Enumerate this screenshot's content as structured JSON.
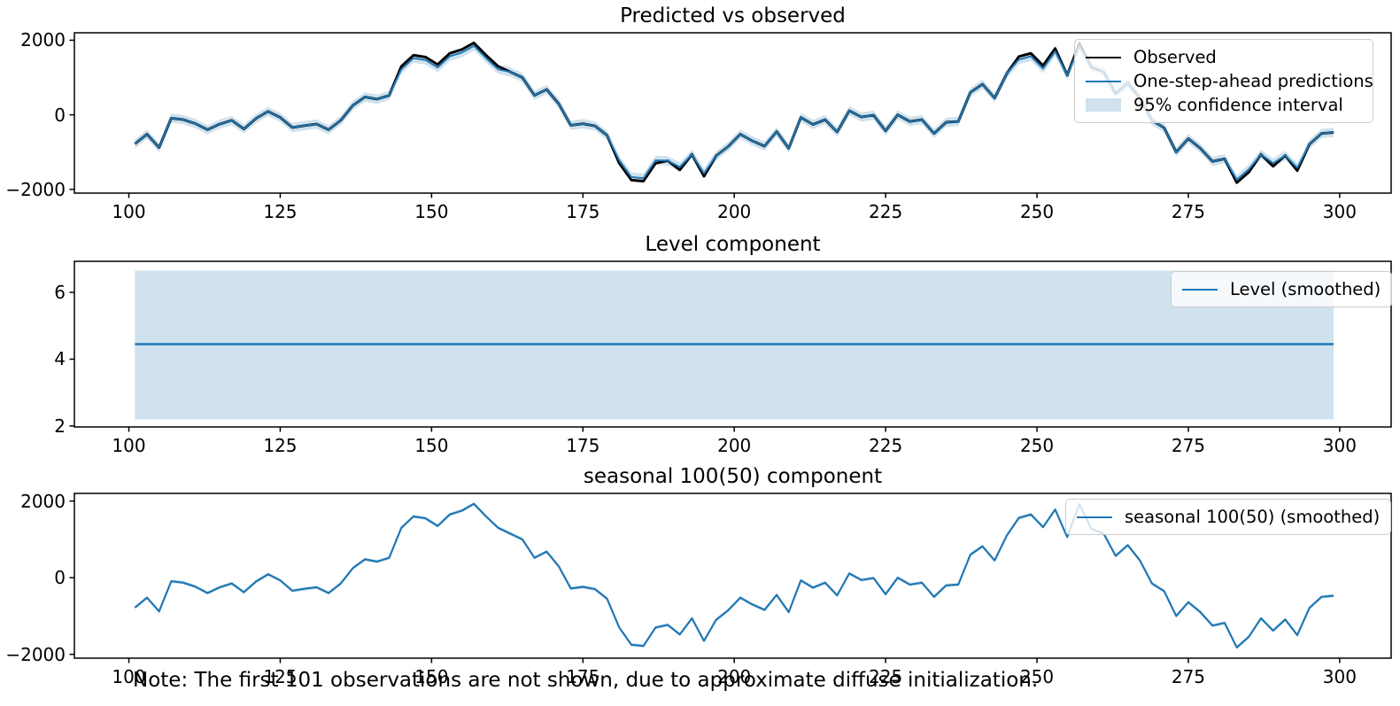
{
  "figure": {
    "note": "Note: The first 101 observations are not shown, due to approximate diffuse initialization.",
    "background": "#ffffff"
  },
  "colors": {
    "observed_line": "#000000",
    "prediction_line": "#1f77b4",
    "level_line": "#1f77b4",
    "seasonal_line": "#1f77b4",
    "confidence_band": "#cfe2ee",
    "axis": "#000000",
    "legend_border": "#cccccc",
    "text": "#000000"
  },
  "chart_data": [
    {
      "type": "line",
      "title": "Predicted vs observed",
      "legend_position": "upper right",
      "legend": [
        "Observed",
        "One-step-ahead predictions",
        "95% confidence interval"
      ],
      "xlim": [
        91,
        308.5
      ],
      "ylim": [
        -2100,
        2200
      ],
      "xticks": [
        100,
        125,
        150,
        175,
        200,
        225,
        250,
        275,
        300
      ],
      "yticks": [
        -2000,
        0,
        2000
      ],
      "grid": false,
      "ci_halfwidth": 125,
      "x": [
        101,
        103,
        105,
        107,
        109,
        111,
        113,
        115,
        117,
        119,
        121,
        123,
        125,
        127,
        129,
        131,
        133,
        135,
        137,
        139,
        141,
        143,
        145,
        147,
        149,
        151,
        153,
        155,
        157,
        159,
        161,
        163,
        165,
        167,
        169,
        171,
        173,
        175,
        177,
        179,
        181,
        183,
        185,
        187,
        189,
        191,
        193,
        195,
        197,
        199,
        201,
        203,
        205,
        207,
        209,
        211,
        213,
        215,
        217,
        219,
        221,
        223,
        225,
        227,
        229,
        231,
        233,
        235,
        237,
        239,
        241,
        243,
        245,
        247,
        249,
        251,
        253,
        255,
        257,
        259,
        261,
        263,
        265,
        267,
        269,
        271,
        273,
        275,
        277,
        279,
        281,
        283,
        285,
        287,
        289,
        291,
        293,
        295,
        297,
        299
      ],
      "series": [
        {
          "name": "Observed",
          "values": [
            -780,
            -520,
            -880,
            -90,
            -130,
            -235,
            -400,
            -250,
            -150,
            -380,
            -100,
            90,
            -70,
            -340,
            -290,
            -250,
            -400,
            -150,
            250,
            480,
            420,
            520,
            1300,
            1600,
            1550,
            1350,
            1650,
            1750,
            1930,
            1600,
            1300,
            1150,
            1000,
            520,
            680,
            300,
            -280,
            -240,
            -300,
            -550,
            -1300,
            -1750,
            -1780,
            -1300,
            -1230,
            -1480,
            -1060,
            -1650,
            -1100,
            -850,
            -520,
            -700,
            -840,
            -450,
            -900,
            -70,
            -260,
            -130,
            -460,
            110,
            -60,
            -10,
            -430,
            0,
            -180,
            -130,
            -500,
            -200,
            -180,
            600,
            820,
            450,
            1100,
            1560,
            1650,
            1320,
            1780,
            1060,
            1920,
            1270,
            1150,
            570,
            850,
            450,
            -150,
            -350,
            -1000,
            -640,
            -900,
            -1250,
            -1180,
            -1820,
            -1540,
            -1060,
            -1380,
            -1090,
            -1500,
            -790,
            -500,
            -470
          ]
        },
        {
          "name": "One-step-ahead predictions",
          "values": [
            -780,
            -520,
            -880,
            -90,
            -130,
            -235,
            -400,
            -250,
            -150,
            -380,
            -100,
            90,
            -70,
            -340,
            -290,
            -250,
            -400,
            -150,
            250,
            480,
            420,
            520,
            1220,
            1520,
            1470,
            1270,
            1570,
            1670,
            1850,
            1520,
            1220,
            1150,
            1000,
            520,
            680,
            300,
            -280,
            -240,
            -300,
            -550,
            -1220,
            -1670,
            -1700,
            -1220,
            -1230,
            -1400,
            -1060,
            -1570,
            -1100,
            -850,
            -520,
            -700,
            -840,
            -450,
            -900,
            -70,
            -260,
            -130,
            -460,
            110,
            -60,
            -10,
            -430,
            0,
            -180,
            -130,
            -500,
            -200,
            -180,
            600,
            820,
            450,
            1100,
            1480,
            1570,
            1240,
            1700,
            1060,
            1840,
            1270,
            1150,
            570,
            850,
            450,
            -150,
            -350,
            -1000,
            -640,
            -900,
            -1250,
            -1180,
            -1740,
            -1460,
            -1060,
            -1300,
            -1090,
            -1420,
            -790,
            -500,
            -470
          ]
        }
      ]
    },
    {
      "type": "line",
      "title": "Level component",
      "legend_position": "upper right",
      "legend": [
        "Level (smoothed)"
      ],
      "xlim": [
        91,
        308.5
      ],
      "ylim": [
        1.97,
        6.93
      ],
      "xticks": [
        100,
        125,
        150,
        175,
        200,
        225,
        250,
        275,
        300
      ],
      "yticks": [
        2,
        4,
        6
      ],
      "grid": false,
      "level_value": 4.45,
      "ci_lower": 2.2,
      "ci_upper": 6.65,
      "x_range": [
        101,
        299
      ]
    },
    {
      "type": "line",
      "title": "seasonal 100(50) component",
      "legend_position": "upper right",
      "legend": [
        "seasonal 100(50) (smoothed)"
      ],
      "xlim": [
        91,
        308.5
      ],
      "ylim": [
        -2100,
        2200
      ],
      "xticks": [
        100,
        125,
        150,
        175,
        200,
        225,
        250,
        275,
        300
      ],
      "yticks": [
        -2000,
        0,
        2000
      ],
      "grid": false,
      "ci_halfwidth": 45,
      "x": [
        101,
        103,
        105,
        107,
        109,
        111,
        113,
        115,
        117,
        119,
        121,
        123,
        125,
        127,
        129,
        131,
        133,
        135,
        137,
        139,
        141,
        143,
        145,
        147,
        149,
        151,
        153,
        155,
        157,
        159,
        161,
        163,
        165,
        167,
        169,
        171,
        173,
        175,
        177,
        179,
        181,
        183,
        185,
        187,
        189,
        191,
        193,
        195,
        197,
        199,
        201,
        203,
        205,
        207,
        209,
        211,
        213,
        215,
        217,
        219,
        221,
        223,
        225,
        227,
        229,
        231,
        233,
        235,
        237,
        239,
        241,
        243,
        245,
        247,
        249,
        251,
        253,
        255,
        257,
        259,
        261,
        263,
        265,
        267,
        269,
        271,
        273,
        275,
        277,
        279,
        281,
        283,
        285,
        287,
        289,
        291,
        293,
        295,
        297,
        299
      ],
      "series": [
        {
          "name": "seasonal 100(50) (smoothed)",
          "values": [
            -780,
            -520,
            -880,
            -90,
            -130,
            -235,
            -400,
            -250,
            -150,
            -380,
            -100,
            90,
            -70,
            -340,
            -290,
            -250,
            -400,
            -150,
            250,
            480,
            420,
            520,
            1300,
            1600,
            1550,
            1350,
            1650,
            1750,
            1930,
            1600,
            1300,
            1150,
            1000,
            520,
            680,
            300,
            -280,
            -240,
            -300,
            -550,
            -1300,
            -1750,
            -1780,
            -1300,
            -1230,
            -1480,
            -1060,
            -1650,
            -1100,
            -850,
            -520,
            -700,
            -840,
            -450,
            -900,
            -70,
            -260,
            -130,
            -460,
            110,
            -60,
            -10,
            -430,
            0,
            -180,
            -130,
            -500,
            -200,
            -180,
            600,
            820,
            450,
            1100,
            1560,
            1650,
            1320,
            1780,
            1060,
            1920,
            1270,
            1150,
            570,
            850,
            450,
            -150,
            -350,
            -1000,
            -640,
            -900,
            -1250,
            -1180,
            -1820,
            -1540,
            -1060,
            -1380,
            -1090,
            -1500,
            -790,
            -500,
            -470
          ]
        }
      ]
    }
  ]
}
